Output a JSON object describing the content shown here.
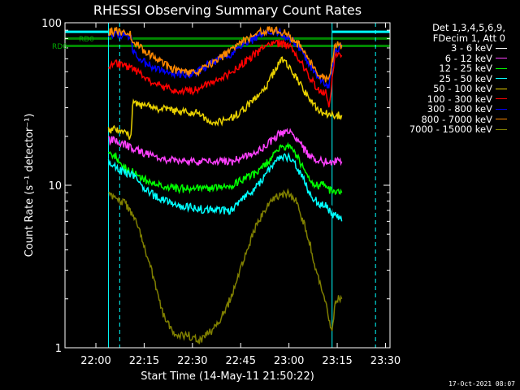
{
  "chart_data": {
    "type": "line",
    "title": "RHESSI Observing Summary Count Rates",
    "xlabel": "Start Time (14-May-11 21:50:22)",
    "ylabel": "Count Rate (s⁻¹ detector⁻¹)",
    "yscale": "log",
    "ylim": [
      1,
      100
    ],
    "xlim_minutes_after_start": [
      0,
      101
    ],
    "xticks": [
      "22:00",
      "22:15",
      "22:30",
      "22:45",
      "23:00",
      "23:15",
      "23:30"
    ],
    "yticks": [
      "1",
      "10",
      "100"
    ],
    "legend_header": [
      "Det 1,3,4,5,6,9,",
      "FDecim 1, Att 0"
    ],
    "legend": [
      {
        "label": "3 - 6 keV",
        "color": "#ffffff"
      },
      {
        "label": "6 - 12 keV",
        "color": "#ff40ff"
      },
      {
        "label": "12 - 25 keV",
        "color": "#00ff00"
      },
      {
        "label": "25 - 50 keV",
        "color": "#00ffff"
      },
      {
        "label": "50 - 100 keV",
        "color": "#e8d000"
      },
      {
        "label": "100 - 300 keV",
        "color": "#ff0000"
      },
      {
        "label": "300 - 800 keV",
        "color": "#0000ff"
      },
      {
        "label": "800 - 7000 keV",
        "color": "#ff8800"
      },
      {
        "label": "7000 - 15000 keV",
        "color": "#808000"
      }
    ],
    "annotations": [
      {
        "text": "RD0",
        "color": "#00aa00"
      },
      {
        "text": "RD6",
        "color": "#00aa00"
      }
    ],
    "series": [
      {
        "name": "3 - 6 keV",
        "color": "#000000",
        "x": [
          13.5,
          16,
          18,
          21,
          24,
          28,
          35,
          45,
          52,
          56,
          60,
          63,
          67,
          70,
          73,
          76,
          78,
          80,
          81,
          83,
          84,
          86
        ],
        "y": [
          15,
          14.5,
          13,
          12,
          10,
          9,
          8,
          7.5,
          8,
          10,
          12,
          15,
          17,
          16,
          13,
          10,
          8,
          8,
          8,
          7,
          7,
          6.5
        ]
      },
      {
        "name": "6 - 12 keV",
        "color": "#ff40ff",
        "x": [
          13.5,
          16,
          18,
          21,
          24,
          28,
          35,
          45,
          52,
          56,
          60,
          63,
          67,
          70,
          73,
          76,
          78,
          80,
          81,
          83,
          84,
          86
        ],
        "y": [
          19,
          19,
          18,
          17,
          16,
          15,
          14,
          14,
          14,
          15,
          16,
          18,
          21,
          21,
          18,
          15,
          14,
          14,
          14,
          14,
          14,
          14
        ]
      },
      {
        "name": "12 - 25 keV",
        "color": "#00ff00",
        "x": [
          13.5,
          16,
          18,
          21,
          24,
          28,
          35,
          45,
          52,
          56,
          60,
          63,
          67,
          70,
          73,
          76,
          78,
          80,
          81,
          83,
          84,
          86
        ],
        "y": [
          16,
          15,
          13,
          12,
          11,
          10,
          9.5,
          9.5,
          10,
          11,
          12,
          14,
          17,
          17,
          14,
          11,
          10,
          10,
          10,
          9,
          9,
          9
        ]
      },
      {
        "name": "25 - 50 keV",
        "color": "#00ffff",
        "x": [
          13.5,
          16,
          18,
          21,
          24,
          28,
          35,
          45,
          52,
          56,
          60,
          63,
          67,
          70,
          73,
          76,
          78,
          80,
          81,
          83,
          84,
          86
        ],
        "y": [
          14,
          13,
          12,
          11.5,
          10,
          8.5,
          7.5,
          7,
          7,
          8.5,
          10,
          12,
          15,
          15,
          12,
          9,
          8,
          7.5,
          7.5,
          6.5,
          6.5,
          6
        ]
      },
      {
        "name": "50 - 100 keV",
        "color": "#e8d000",
        "x": [
          13.5,
          16,
          18,
          20.5,
          21,
          24,
          28,
          35,
          40,
          41,
          45,
          52,
          56,
          60,
          63,
          67,
          70,
          73,
          76,
          78,
          80,
          81,
          83,
          84,
          86
        ],
        "y": [
          22,
          22,
          21,
          20,
          32,
          31,
          30,
          28.5,
          28,
          28,
          24,
          26,
          30,
          35,
          42,
          60,
          52,
          42,
          34,
          30,
          28,
          28,
          27,
          27,
          27
        ]
      },
      {
        "name": "100 - 300 keV",
        "color": "#ff0000",
        "x": [
          13.5,
          16,
          18,
          21,
          24,
          28,
          35,
          40,
          45,
          52,
          56,
          60,
          63,
          67,
          70,
          73,
          76,
          78,
          80,
          81,
          82,
          84,
          86
        ],
        "y": [
          55,
          56,
          55,
          52,
          48,
          42,
          38,
          38,
          42,
          50,
          58,
          66,
          73,
          75,
          70,
          58,
          46,
          40,
          38,
          37,
          30,
          63,
          63
        ]
      },
      {
        "name": "300 - 800 keV",
        "color": "#0000ff",
        "x": [
          13.5,
          16,
          18,
          20.5,
          21,
          24,
          28,
          35,
          40,
          45,
          52,
          56,
          60,
          63,
          67,
          70,
          73,
          76,
          78,
          80,
          81,
          82,
          84,
          86
        ],
        "y": [
          85,
          86,
          84,
          82,
          66,
          58,
          52,
          48,
          48,
          56,
          65,
          74,
          82,
          86,
          87,
          80,
          70,
          56,
          47,
          43,
          41,
          40,
          70,
          70
        ]
      },
      {
        "name": "800 - 7000 keV",
        "color": "#ff8800",
        "x": [
          13.5,
          16,
          18,
          20.5,
          21,
          24,
          28,
          35,
          40,
          45,
          52,
          56,
          60,
          63,
          67,
          70,
          73,
          76,
          78,
          80,
          81,
          82,
          84,
          86
        ],
        "y": [
          88,
          89,
          86,
          84,
          78,
          69,
          60,
          50,
          49,
          55,
          68,
          78,
          87,
          90,
          89,
          82,
          72,
          58,
          50,
          46,
          45,
          45,
          73,
          73
        ]
      },
      {
        "name": "7000 - 15000 keV",
        "color": "#808000",
        "x": [
          13.5,
          16,
          18,
          20,
          22,
          25,
          27,
          29,
          31,
          34,
          38,
          42,
          46,
          50,
          54,
          57,
          60,
          63,
          66,
          69,
          72,
          74,
          76,
          78,
          80,
          81,
          82,
          83,
          84,
          86
        ],
        "y": [
          9,
          8,
          8,
          7,
          6,
          4,
          3,
          2,
          1.5,
          1.2,
          1.2,
          1.1,
          1.3,
          1.7,
          2.8,
          4.2,
          6,
          7.5,
          8.5,
          9,
          8,
          6,
          4.5,
          3,
          2.2,
          2,
          1.5,
          1.2,
          2,
          2
        ]
      }
    ]
  }
}
